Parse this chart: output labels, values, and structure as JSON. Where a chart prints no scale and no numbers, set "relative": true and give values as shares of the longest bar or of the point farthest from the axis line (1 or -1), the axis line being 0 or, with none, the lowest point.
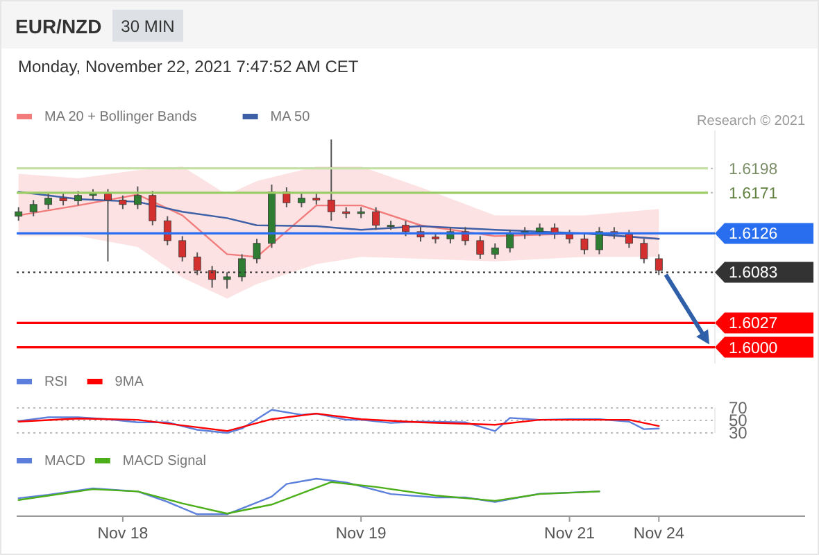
{
  "chart_data": [
    {
      "type": "candlestick",
      "title": "EUR/NZD",
      "subtitle": "30 MIN",
      "annotations": [
        "Monday, November 22, 2021 7:47:52 AM CET",
        "Research © 2021"
      ],
      "legend": "top left",
      "tick_labels": "y",
      "grid": "y",
      "ylim": [
        1.5982,
        1.624
      ],
      "yticks": [
        {
          "value": 1.6,
          "label": "1.6000"
        },
        1.6027,
        1.6083,
        1.6126,
        1.6171,
        1.6198
      ],
      "ohlc": [
        [
          1.6145,
          1.6155,
          1.614,
          1.615
        ],
        [
          1.615,
          1.6163,
          1.6145,
          1.6158
        ],
        [
          1.6158,
          1.617,
          1.6153,
          1.6165
        ],
        [
          1.6165,
          1.617,
          1.6157,
          1.6162
        ],
        [
          1.6162,
          1.6173,
          1.6157,
          1.6168
        ],
        [
          1.6168,
          1.6175,
          1.6163,
          1.617
        ],
        [
          1.617,
          1.6175,
          1.6095,
          1.6163
        ],
        [
          1.6163,
          1.6168,
          1.6153,
          1.6158
        ],
        [
          1.6158,
          1.6178,
          1.6153,
          1.6168
        ],
        [
          1.6168,
          1.6173,
          1.6135,
          1.614
        ],
        [
          1.614,
          1.6145,
          1.6113,
          1.6118
        ],
        [
          1.6118,
          1.6123,
          1.6095,
          1.61
        ],
        [
          1.61,
          1.6105,
          1.608,
          1.6085
        ],
        [
          1.6085,
          1.609,
          1.6066,
          1.6075
        ],
        [
          1.6075,
          1.6083,
          1.6065,
          1.6078
        ],
        [
          1.6078,
          1.6103,
          1.6073,
          1.6098
        ],
        [
          1.6098,
          1.612,
          1.6093,
          1.6115
        ],
        [
          1.6115,
          1.618,
          1.611,
          1.6172
        ],
        [
          1.6172,
          1.6177,
          1.6155,
          1.616
        ],
        [
          1.616,
          1.617,
          1.6155,
          1.6165
        ],
        [
          1.6165,
          1.617,
          1.6158,
          1.6163
        ],
        [
          1.6163,
          1.623,
          1.614,
          1.615
        ],
        [
          1.615,
          1.6155,
          1.6143,
          1.6148
        ],
        [
          1.6148,
          1.6155,
          1.6143,
          1.615
        ],
        [
          1.615,
          1.6155,
          1.613,
          1.6135
        ],
        [
          1.6135,
          1.614,
          1.613,
          1.6135
        ],
        [
          1.6135,
          1.614,
          1.6123,
          1.6128
        ],
        [
          1.6128,
          1.6133,
          1.6117,
          1.6122
        ],
        [
          1.6122,
          1.6127,
          1.6115,
          1.612
        ],
        [
          1.612,
          1.6133,
          1.6115,
          1.6128
        ],
        [
          1.6128,
          1.6133,
          1.6113,
          1.6118
        ],
        [
          1.6118,
          1.6123,
          1.6098,
          1.6103
        ],
        [
          1.6103,
          1.6115,
          1.6098,
          1.611
        ],
        [
          1.611,
          1.613,
          1.6105,
          1.6125
        ],
        [
          1.6125,
          1.6133,
          1.612,
          1.6128
        ],
        [
          1.6128,
          1.6137,
          1.6123,
          1.6132
        ],
        [
          1.6132,
          1.6137,
          1.612,
          1.6125
        ],
        [
          1.6125,
          1.613,
          1.6115,
          1.612
        ],
        [
          1.612,
          1.6125,
          1.6103,
          1.6108
        ],
        [
          1.6108,
          1.6133,
          1.6103,
          1.6128
        ],
        [
          1.6128,
          1.6133,
          1.612,
          1.6125
        ],
        [
          1.6125,
          1.613,
          1.611,
          1.6115
        ],
        [
          1.6115,
          1.612,
          1.6093,
          1.6098
        ],
        [
          1.6098,
          1.6103,
          1.608,
          1.6085
        ]
      ],
      "series": [
        {
          "type": "line",
          "name": "MA 20 + Bollinger Bands",
          "color": "#f27c7c",
          "values": [
            1.6146,
            null,
            null,
            null,
            1.6157,
            null,
            null,
            null,
            1.6169,
            null,
            null,
            1.6146,
            null,
            null,
            1.6103,
            null,
            1.61,
            null,
            null,
            null,
            1.6157,
            null,
            null,
            1.6157,
            null,
            null,
            null,
            1.6135,
            null,
            null,
            null,
            null,
            1.6123,
            null,
            null,
            null,
            null,
            null,
            1.6126,
            null,
            null,
            null,
            null,
            1.612
          ],
          "upper": [
            1.6192,
            null,
            null,
            null,
            1.6187,
            null,
            null,
            null,
            1.6196,
            null,
            null,
            1.62,
            null,
            null,
            1.6169,
            null,
            1.6184,
            null,
            null,
            null,
            1.62,
            null,
            null,
            1.62,
            null,
            null,
            null,
            1.6177,
            null,
            null,
            null,
            null,
            1.6146,
            null,
            null,
            null,
            null,
            null,
            1.6146,
            null,
            null,
            null,
            null,
            1.6153
          ],
          "lower": [
            1.6123,
            null,
            null,
            null,
            1.6123,
            null,
            null,
            null,
            1.6111,
            null,
            null,
            1.6077,
            null,
            null,
            1.6054,
            null,
            1.607,
            null,
            null,
            null,
            1.6092,
            null,
            null,
            1.61,
            null,
            null,
            null,
            1.6098,
            null,
            null,
            null,
            null,
            1.6095,
            null,
            null,
            null,
            null,
            null,
            1.61,
            null,
            null,
            null,
            null,
            1.61
          ]
        },
        {
          "type": "line",
          "name": "MA 50",
          "color": "#3d5fa6",
          "values": [
            1.6172,
            null,
            null,
            null,
            1.6164,
            null,
            null,
            null,
            1.6161,
            null,
            null,
            1.615,
            null,
            null,
            1.6143,
            null,
            1.6135,
            null,
            null,
            null,
            1.6134,
            null,
            null,
            1.613,
            null,
            null,
            null,
            1.6134,
            null,
            null,
            null,
            null,
            1.613,
            null,
            null,
            null,
            null,
            null,
            1.6126,
            null,
            null,
            null,
            null,
            1.612
          ]
        }
      ],
      "ref_lines": [
        {
          "axis": "y",
          "value": 1.6198,
          "color": "#c5e1a5"
        },
        {
          "axis": "y",
          "value": 1.6171,
          "color": "#9ccc65"
        },
        {
          "axis": "y",
          "value": 1.6126,
          "color": "#2a6ef0"
        },
        {
          "axis": "y",
          "value": 1.6083,
          "color": "#333333",
          "line_style": "dotted"
        },
        {
          "axis": "y",
          "value": 1.6027,
          "color": "#ff0000"
        },
        {
          "axis": "y",
          "value": 1.6,
          "color": "#ff0000"
        }
      ]
    },
    {
      "type": "line",
      "legend": "top left",
      "tick_labels": "y",
      "grid": "y",
      "ylim": [
        30,
        70
      ],
      "yticks": [
        30,
        50,
        70
      ],
      "series": [
        {
          "name": "RSI",
          "color": "#5b7fdb",
          "values": [
            49,
            null,
            55,
            null,
            55,
            null,
            52,
            null,
            47,
            null,
            47,
            null,
            35,
            null,
            30,
            37,
            null,
            67,
            null,
            59,
            61,
            null,
            51,
            51,
            null,
            46,
            null,
            48,
            null,
            null,
            47,
            null,
            33,
            54,
            null,
            51,
            null,
            52,
            null,
            52,
            null,
            48,
            36,
            37
          ]
        },
        {
          "name": "9MA",
          "color": "#ff0000",
          "values": [
            48,
            null,
            null,
            null,
            53,
            null,
            null,
            null,
            51,
            null,
            null,
            null,
            39,
            null,
            33,
            null,
            null,
            52,
            null,
            null,
            61,
            null,
            null,
            52,
            null,
            null,
            null,
            47,
            null,
            null,
            null,
            null,
            43,
            null,
            null,
            51,
            null,
            null,
            null,
            null,
            null,
            51,
            null,
            41
          ]
        }
      ]
    },
    {
      "type": "line",
      "legend": "top left",
      "tick_labels": "x",
      "relative": true,
      "categories": [
        null,
        null,
        null,
        null,
        null,
        null,
        null,
        "Nov 18",
        null,
        null,
        null,
        null,
        null,
        null,
        null,
        null,
        null,
        null,
        null,
        null,
        null,
        null,
        null,
        "Nov 19",
        null,
        null,
        null,
        null,
        null,
        null,
        null,
        null,
        null,
        null,
        null,
        null,
        null,
        "Nov 21",
        null,
        null,
        null,
        null,
        null,
        "Nov 24"
      ],
      "series": [
        {
          "name": "MACD",
          "color": "#5b7fdb",
          "values": [
            0.48,
            null,
            0.57,
            null,
            null,
            0.74,
            null,
            null,
            0.66,
            null,
            0.38,
            null,
            0.05,
            null,
            0.05,
            null,
            null,
            0.52,
            0.86,
            null,
            1,
            null,
            0.9,
            null,
            null,
            0.59,
            null,
            null,
            0.5,
            null,
            0.5,
            null,
            0.38,
            null,
            null,
            0.6,
            null,
            null,
            null,
            0.66,
            null,
            null,
            null,
            null
          ]
        },
        {
          "name": "MACD Signal",
          "color": "#4caf1a",
          "values": [
            0.43,
            null,
            null,
            null,
            null,
            0.72,
            null,
            null,
            0.66,
            null,
            null,
            0.34,
            null,
            null,
            0.07,
            null,
            null,
            0.31,
            null,
            null,
            null,
            0.91,
            null,
            null,
            0.78,
            null,
            null,
            null,
            0.55,
            null,
            null,
            null,
            0.41,
            null,
            null,
            0.59,
            null,
            null,
            null,
            0.66,
            null,
            null,
            null,
            null
          ]
        }
      ]
    }
  ]
}
